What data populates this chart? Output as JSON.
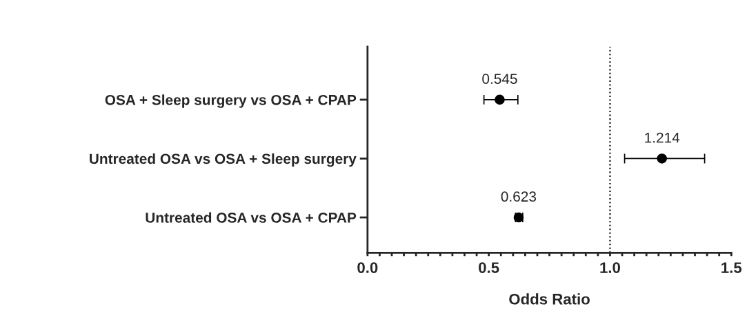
{
  "chart_data": {
    "type": "scatter",
    "orientation": "horizontal",
    "xlabel": "Odds Ratio",
    "categories": [
      "OSA + Sleep surgery vs OSA + CPAP",
      "Untreated OSA vs OSA + Sleep surgery",
      "Untreated OSA vs OSA + CPAP"
    ],
    "values": [
      0.545,
      1.214,
      0.623
    ],
    "errors": [
      [
        0.48,
        0.62
      ],
      [
        1.06,
        1.39
      ],
      [
        0.61,
        0.64
      ]
    ],
    "color": "#000000",
    "marker": "circle",
    "data_labels": true,
    "xlim": [
      0,
      1.5
    ],
    "xticks": [
      {
        "value": 0,
        "label": "0.0"
      },
      {
        "value": 0.05,
        "label": null
      },
      {
        "value": 0.1,
        "label": null
      },
      {
        "value": 0.15,
        "label": null
      },
      {
        "value": 0.2,
        "label": null
      },
      {
        "value": 0.25,
        "label": null
      },
      {
        "value": 0.3,
        "label": null
      },
      {
        "value": 0.35,
        "label": null
      },
      {
        "value": 0.4,
        "label": null
      },
      {
        "value": 0.45,
        "label": null
      },
      0.5,
      {
        "value": 0.55,
        "label": null
      },
      {
        "value": 0.6,
        "label": null
      },
      {
        "value": 0.65,
        "label": null
      },
      {
        "value": 0.7,
        "label": null
      },
      {
        "value": 0.75,
        "label": null
      },
      {
        "value": 0.8,
        "label": null
      },
      {
        "value": 0.85,
        "label": null
      },
      {
        "value": 0.9,
        "label": null
      },
      {
        "value": 0.95,
        "label": null
      },
      {
        "value": 1,
        "label": "1.0"
      },
      {
        "value": 1.05,
        "label": null
      },
      {
        "value": 1.1,
        "label": null
      },
      {
        "value": 1.15,
        "label": null
      },
      {
        "value": 1.2,
        "label": null
      },
      {
        "value": 1.25,
        "label": null
      },
      {
        "value": 1.3,
        "label": null
      },
      {
        "value": 1.35,
        "label": null
      },
      {
        "value": 1.4,
        "label": null
      },
      {
        "value": 1.45,
        "label": null
      },
      1.5
    ],
    "ref_lines": [
      {
        "axis": "x",
        "value": 1.0,
        "line_style": "dotted",
        "color": "#000000"
      }
    ],
    "grid": false,
    "legend": false
  }
}
